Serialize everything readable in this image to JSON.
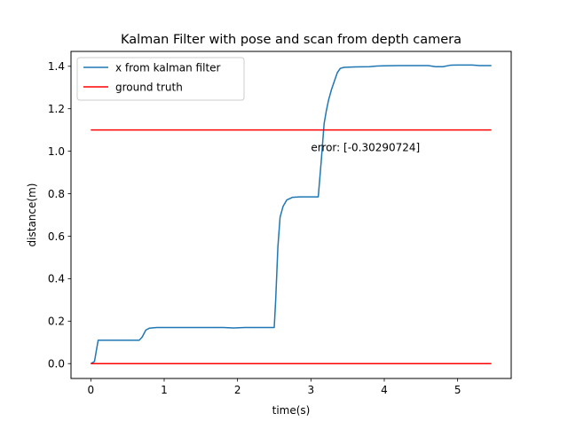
{
  "chart_data": {
    "type": "line",
    "title": "Kalman Filter with pose and scan from depth camera",
    "xlabel": "time(s)",
    "ylabel": "distance(m)",
    "xlim": [
      -0.27,
      5.73
    ],
    "ylim": [
      -0.07,
      1.47
    ],
    "xticks": [
      {
        "value": 0,
        "label": "0"
      },
      {
        "value": 1,
        "label": "1"
      },
      {
        "value": 2,
        "label": "2"
      },
      {
        "value": 3,
        "label": "3"
      },
      {
        "value": 4,
        "label": "4"
      },
      {
        "value": 5,
        "label": "5"
      }
    ],
    "yticks": [
      {
        "value": 0.0,
        "label": "0.0"
      },
      {
        "value": 0.2,
        "label": "0.2"
      },
      {
        "value": 0.4,
        "label": "0.4"
      },
      {
        "value": 0.6,
        "label": "0.6"
      },
      {
        "value": 0.8,
        "label": "0.8"
      },
      {
        "value": 1.0,
        "label": "1.0"
      },
      {
        "value": 1.2,
        "label": "1.2"
      },
      {
        "value": 1.4,
        "label": "1.4"
      }
    ],
    "grid": false,
    "legend_position": "top-left",
    "series": [
      {
        "name": "x from kalman filter",
        "color": "#1f77b4",
        "x": [
          0.0,
          0.05,
          0.1,
          0.2,
          0.4,
          0.6,
          0.66,
          0.7,
          0.75,
          0.8,
          0.9,
          1.0,
          1.2,
          1.5,
          1.8,
          1.95,
          2.1,
          2.3,
          2.5,
          2.52,
          2.55,
          2.58,
          2.62,
          2.67,
          2.75,
          2.85,
          3.0,
          3.1,
          3.14,
          3.18,
          3.21,
          3.24,
          3.28,
          3.32,
          3.36,
          3.4,
          3.45,
          3.6,
          3.8,
          3.9,
          4.0,
          4.2,
          4.4,
          4.6,
          4.7,
          4.8,
          4.9,
          5.0,
          5.1,
          5.2,
          5.3,
          5.46
        ],
        "y": [
          0.0,
          0.01,
          0.11,
          0.11,
          0.11,
          0.11,
          0.11,
          0.125,
          0.158,
          0.167,
          0.17,
          0.17,
          0.17,
          0.17,
          0.17,
          0.168,
          0.17,
          0.17,
          0.17,
          0.3,
          0.55,
          0.69,
          0.74,
          0.77,
          0.783,
          0.785,
          0.785,
          0.785,
          0.95,
          1.13,
          1.19,
          1.24,
          1.29,
          1.33,
          1.37,
          1.39,
          1.395,
          1.397,
          1.398,
          1.401,
          1.402,
          1.403,
          1.403,
          1.403,
          1.398,
          1.398,
          1.405,
          1.406,
          1.406,
          1.406,
          1.403,
          1.403
        ]
      },
      {
        "name": "ground truth",
        "color": "#ff0000",
        "x": [
          0.0,
          5.46
        ],
        "y": [
          1.1,
          1.1
        ]
      },
      {
        "name": "",
        "color": "#ff0000",
        "x": [
          0.0,
          5.46
        ],
        "y": [
          0.0,
          0.0
        ]
      }
    ],
    "annotations": [
      {
        "text": "error: [-0.30290724]",
        "x": 3.0,
        "y": 1.0
      }
    ]
  }
}
